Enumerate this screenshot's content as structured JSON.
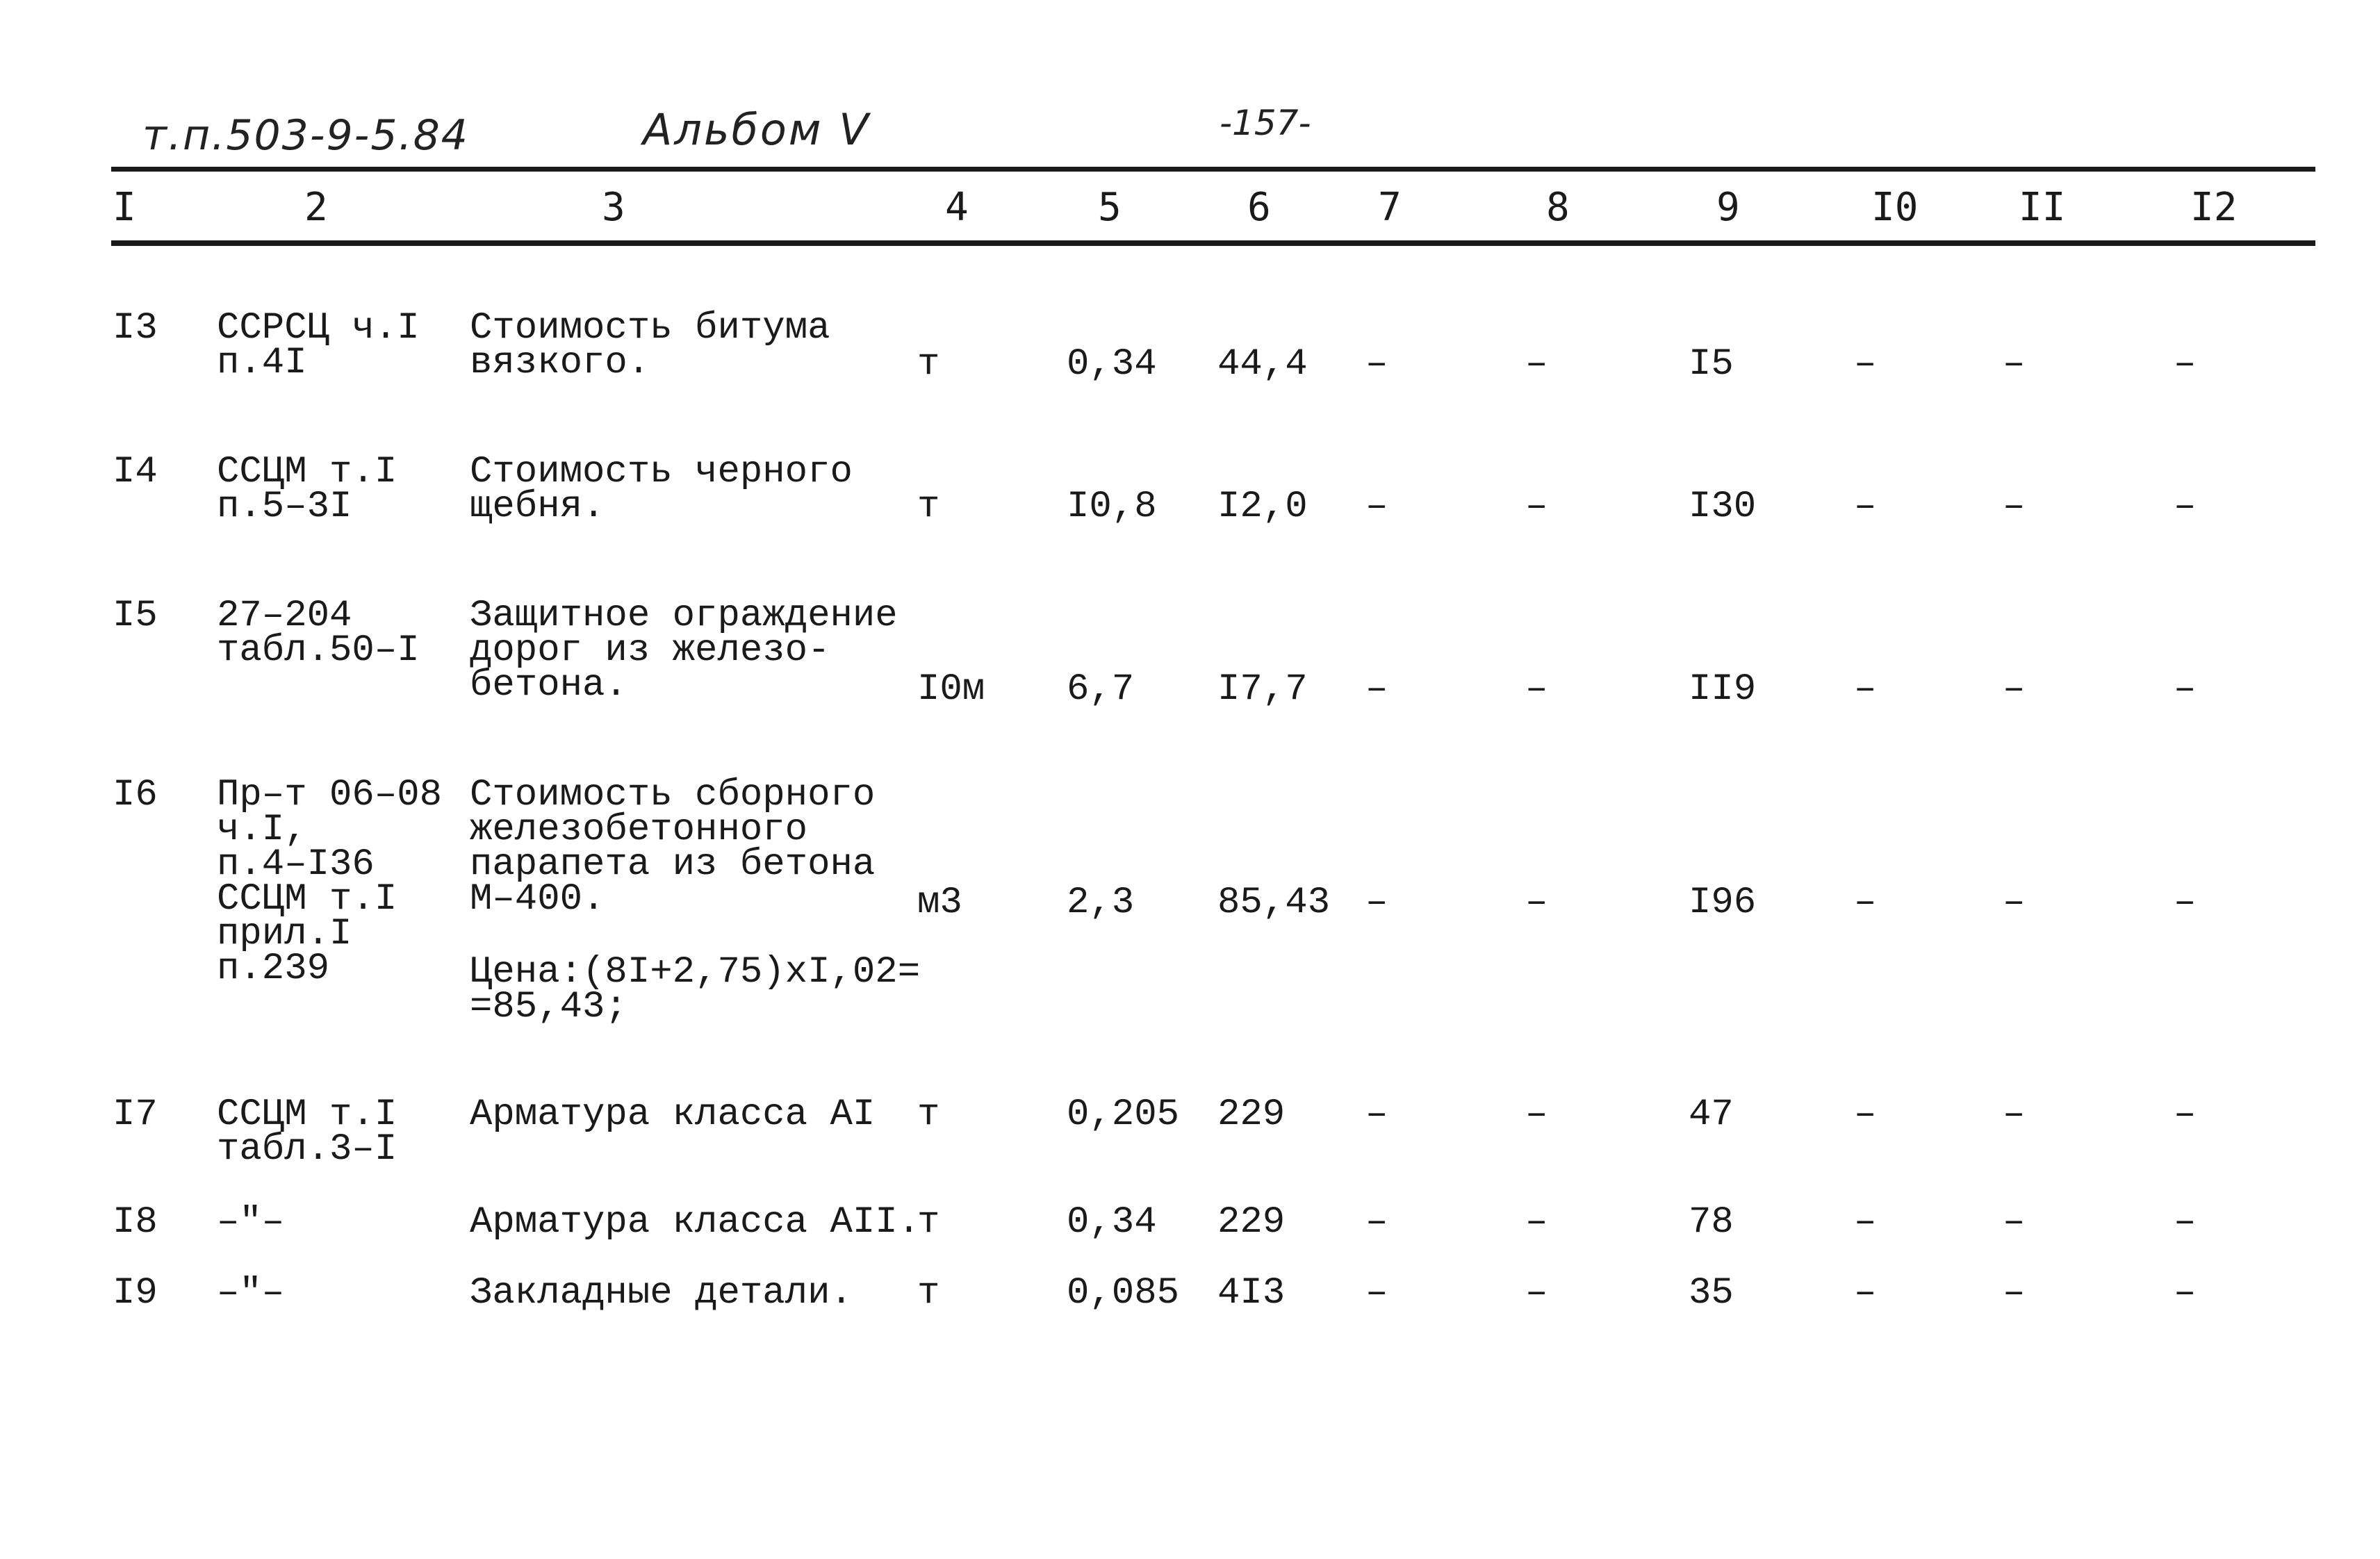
{
  "header": {
    "doc_code": "т.п.503-9-5.84",
    "album": "Альбом V",
    "page": "-157-"
  },
  "columns": [
    "I",
    "2",
    "3",
    "4",
    "5",
    "6",
    "7",
    "8",
    "9",
    "I0",
    "II",
    "I2"
  ],
  "rows": [
    {
      "c1": "I3",
      "c2": "ССРСЦ ч.I\nп.4I",
      "c3": "Стоимость битума\nвязкого.",
      "c4": "т",
      "c5": "0,34",
      "c6": "44,4",
      "c7": "–",
      "c8": "–",
      "c9": "I5",
      "c10": "–",
      "c11": "–",
      "c12": "–"
    },
    {
      "c1": "I4",
      "c2": "ССЦМ т.I\nп.5–3I",
      "c3": "Стоимость черного\nщебня.",
      "c4": "т",
      "c5": "I0,8",
      "c6": "I2,0",
      "c7": "–",
      "c8": "–",
      "c9": "I30",
      "c10": "–",
      "c11": "–",
      "c12": "–"
    },
    {
      "c1": "I5",
      "c2": "27–204\nтабл.50–I",
      "c3": "Защитное ограждение\nдорог из железо-\nбетона.",
      "c4": "I0м",
      "c5": "6,7",
      "c6": "I7,7",
      "c7": "–",
      "c8": "–",
      "c9": "II9",
      "c10": "–",
      "c11": "–",
      "c12": "–"
    },
    {
      "c1": "I6",
      "c2": "Пр–т 06–08\nч.I,\nп.4–I36\nССЦМ т.I\nприл.I\nп.239",
      "c3": "Стоимость сборного\nжелезобетонного\nпарапета из бетона\nМ–400.",
      "c3b": "Цена:(8I+2,75)xI,02=\n=85,43;",
      "c4": "м3",
      "c5": "2,3",
      "c6": "85,43",
      "c7": "–",
      "c8": "–",
      "c9": "I96",
      "c10": "–",
      "c11": "–",
      "c12": "–"
    },
    {
      "c1": "I7",
      "c2": "ССЦМ т.I\nтабл.3–I",
      "c3": "Арматура класса АI",
      "c4": "т",
      "c5": "0,205",
      "c6": "229",
      "c7": "–",
      "c8": "–",
      "c9": "47",
      "c10": "–",
      "c11": "–",
      "c12": "–"
    },
    {
      "c1": "I8",
      "c2": "–\"–",
      "c3": "Арматура класса АII.",
      "c4": "т",
      "c5": "0,34",
      "c6": "229",
      "c7": "–",
      "c8": "–",
      "c9": "78",
      "c10": "–",
      "c11": "–",
      "c12": "–"
    },
    {
      "c1": "I9",
      "c2": "–\"–",
      "c3": "Закладные детали.",
      "c4": "т",
      "c5": "0,085",
      "c6": "4I3",
      "c7": "–",
      "c8": "–",
      "c9": "35",
      "c10": "–",
      "c11": "–",
      "c12": "–"
    }
  ]
}
